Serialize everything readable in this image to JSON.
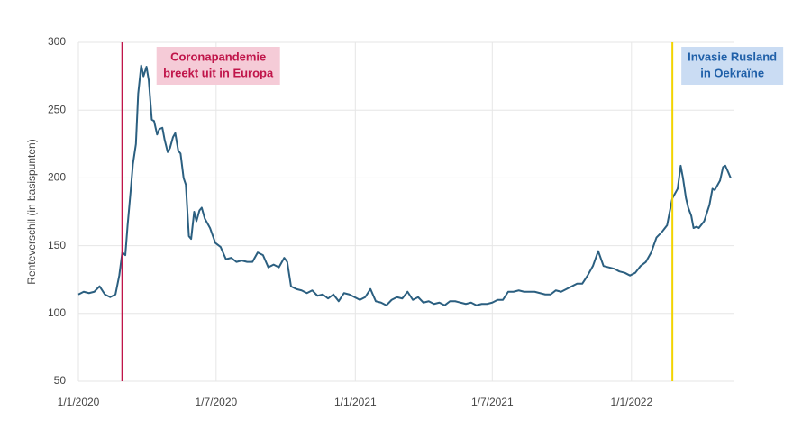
{
  "chart_data": {
    "type": "line",
    "y_label": "Renteverschil (in basispunten)",
    "color": "#2b5f80",
    "xlim": [
      "2020-01-01",
      "2022-05-17"
    ],
    "xticks": [
      {
        "value": "2020-01-01",
        "label": "1/1/2020"
      },
      {
        "value": "2020-07-01",
        "label": "1/7/2020"
      },
      {
        "value": "2021-01-01",
        "label": "1/1/2021"
      },
      {
        "value": "2021-07-01",
        "label": "1/7/2021"
      },
      {
        "value": "2022-01-01",
        "label": "1/1/2022"
      }
    ],
    "ylim": [
      50,
      300
    ],
    "yticks": [
      50,
      100,
      150,
      200,
      250,
      300
    ],
    "grid": true,
    "annotations": [
      {
        "date": "2020-02-28",
        "lines": [
          "Coronapandemie",
          "breekt uit in Europa"
        ],
        "color": "#c0154a",
        "box_color": "#f5cbd7",
        "text_color": "#c0154a"
      },
      {
        "date": "2022-02-24",
        "lines": [
          "Invasie Rusland",
          "in Oekraïne"
        ],
        "color": "#f2d400",
        "box_color": "#cadcf3",
        "text_color": "#1f5fa8"
      }
    ],
    "x": [
      "2020-01-01",
      "2020-01-08",
      "2020-01-15",
      "2020-01-22",
      "2020-01-29",
      "2020-02-05",
      "2020-02-12",
      "2020-02-19",
      "2020-02-24",
      "2020-02-28",
      "2020-03-03",
      "2020-03-06",
      "2020-03-10",
      "2020-03-13",
      "2020-03-17",
      "2020-03-20",
      "2020-03-24",
      "2020-03-27",
      "2020-03-31",
      "2020-04-03",
      "2020-04-07",
      "2020-04-10",
      "2020-04-14",
      "2020-04-17",
      "2020-04-21",
      "2020-04-24",
      "2020-04-28",
      "2020-05-01",
      "2020-05-05",
      "2020-05-08",
      "2020-05-12",
      "2020-05-15",
      "2020-05-19",
      "2020-05-22",
      "2020-05-26",
      "2020-05-29",
      "2020-06-02",
      "2020-06-05",
      "2020-06-09",
      "2020-06-12",
      "2020-06-16",
      "2020-06-19",
      "2020-06-23",
      "2020-06-30",
      "2020-07-07",
      "2020-07-14",
      "2020-07-21",
      "2020-07-28",
      "2020-08-04",
      "2020-08-11",
      "2020-08-18",
      "2020-08-25",
      "2020-09-01",
      "2020-09-08",
      "2020-09-15",
      "2020-09-22",
      "2020-09-29",
      "2020-10-03",
      "2020-10-08",
      "2020-10-15",
      "2020-10-22",
      "2020-10-29",
      "2020-11-05",
      "2020-11-12",
      "2020-11-19",
      "2020-11-26",
      "2020-12-03",
      "2020-12-10",
      "2020-12-17",
      "2020-12-24",
      "2020-12-31",
      "2021-01-07",
      "2021-01-14",
      "2021-01-21",
      "2021-01-28",
      "2021-02-04",
      "2021-02-11",
      "2021-02-18",
      "2021-02-25",
      "2021-03-04",
      "2021-03-11",
      "2021-03-18",
      "2021-03-25",
      "2021-04-01",
      "2021-04-08",
      "2021-04-15",
      "2021-04-22",
      "2021-04-29",
      "2021-05-06",
      "2021-05-13",
      "2021-05-20",
      "2021-05-27",
      "2021-06-03",
      "2021-06-10",
      "2021-06-17",
      "2021-06-24",
      "2021-07-01",
      "2021-07-08",
      "2021-07-15",
      "2021-07-22",
      "2021-07-29",
      "2021-08-05",
      "2021-08-12",
      "2021-08-19",
      "2021-08-26",
      "2021-09-02",
      "2021-09-09",
      "2021-09-16",
      "2021-09-23",
      "2021-09-30",
      "2021-10-07",
      "2021-10-14",
      "2021-10-21",
      "2021-10-28",
      "2021-11-04",
      "2021-11-11",
      "2021-11-18",
      "2021-11-25",
      "2021-12-02",
      "2021-12-09",
      "2021-12-16",
      "2021-12-23",
      "2021-12-30",
      "2022-01-06",
      "2022-01-13",
      "2022-01-20",
      "2022-01-27",
      "2022-02-03",
      "2022-02-10",
      "2022-02-17",
      "2022-02-24",
      "2022-03-03",
      "2022-03-07",
      "2022-03-10",
      "2022-03-14",
      "2022-03-17",
      "2022-03-21",
      "2022-03-24",
      "2022-03-28",
      "2022-03-31",
      "2022-04-07",
      "2022-04-14",
      "2022-04-18",
      "2022-04-21",
      "2022-04-28",
      "2022-05-02",
      "2022-05-05",
      "2022-05-09",
      "2022-05-12"
    ],
    "values": [
      114,
      116,
      115,
      116,
      120,
      114,
      112,
      114,
      128,
      145,
      143,
      165,
      190,
      210,
      225,
      262,
      283,
      275,
      282,
      272,
      243,
      242,
      232,
      236,
      237,
      228,
      219,
      222,
      230,
      233,
      220,
      218,
      200,
      195,
      157,
      155,
      175,
      168,
      176,
      178,
      170,
      167,
      163,
      152,
      149,
      140,
      141,
      138,
      139,
      138,
      138,
      145,
      143,
      134,
      136,
      134,
      141,
      138,
      120,
      118,
      117,
      115,
      117,
      113,
      114,
      111,
      114,
      109,
      115,
      114,
      112,
      110,
      112,
      118,
      109,
      108,
      106,
      110,
      112,
      111,
      116,
      110,
      112,
      108,
      109,
      107,
      108,
      106,
      109,
      109,
      108,
      107,
      108,
      106,
      107,
      107,
      108,
      110,
      110,
      116,
      116,
      117,
      116,
      116,
      116,
      115,
      114,
      114,
      117,
      116,
      118,
      120,
      122,
      122,
      128,
      135,
      146,
      135,
      134,
      133,
      131,
      130,
      128,
      130,
      135,
      138,
      145,
      156,
      160,
      165,
      185,
      192,
      209,
      200,
      185,
      178,
      172,
      163,
      164,
      163,
      168,
      180,
      192,
      191,
      198,
      208,
      209,
      204,
      200
    ]
  }
}
